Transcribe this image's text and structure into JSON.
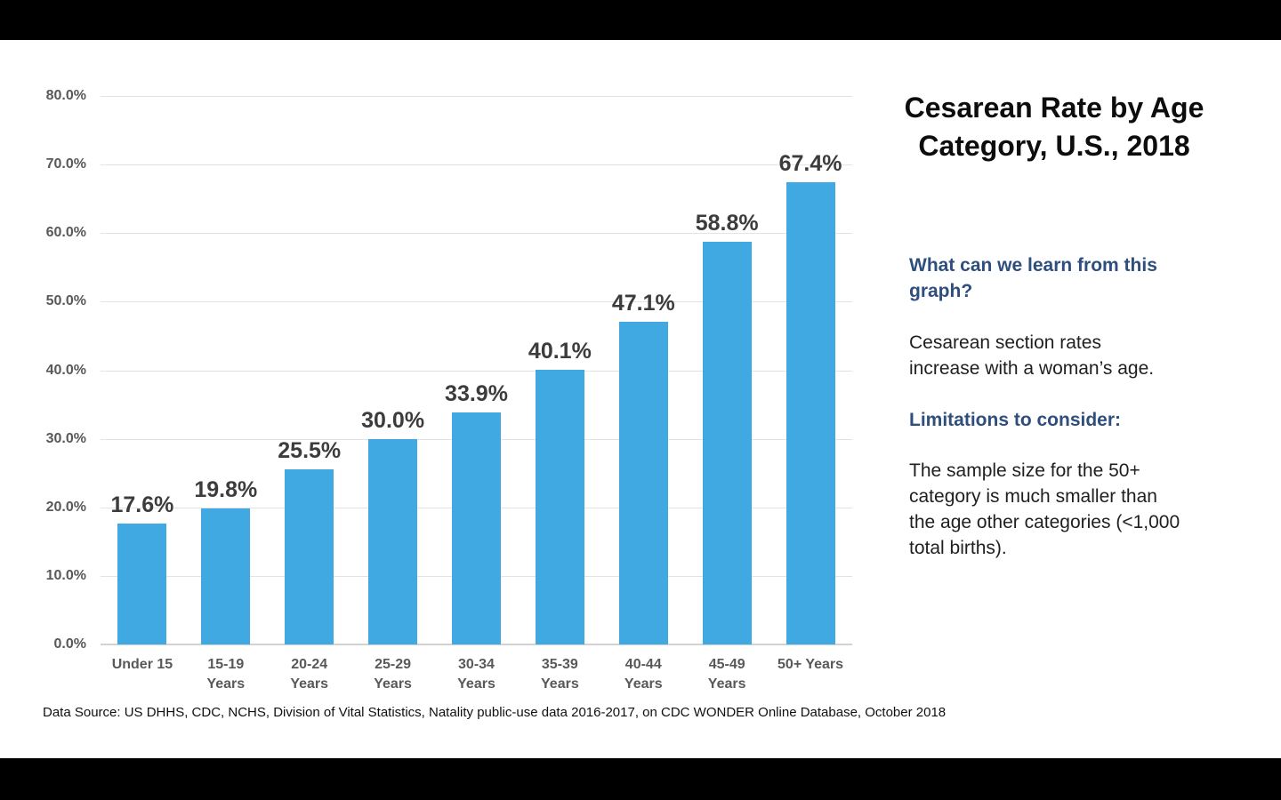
{
  "slide": {
    "background": "#ffffff",
    "letterbox_color": "#000000"
  },
  "title": {
    "text": "Cesarean Rate by Age Category, U.S., 2018",
    "lines": [
      "Cesarean Rate by Age",
      "Category, U.S., 2018"
    ]
  },
  "insights": {
    "learn_heading": "What can we learn from this graph?",
    "learn_body": "Cesarean section rates increase with a woman’s age.",
    "limits_heading": "Limitations to consider:",
    "limits_body": "The sample size for the 50+ category is much smaller than the age other categories (<1,000 total births)."
  },
  "source": "Data Source: US DHHS, CDC, NCHS, Division of Vital Statistics, Natality public-use data 2016-2017, on CDC WONDER Online Database, October 2018",
  "colors": {
    "bar": "#41a9e1",
    "heading_blue": "#2e4e7d",
    "gridline": "#e3e3e3",
    "axis_text": "#58595b",
    "data_label": "#3c3c3c"
  },
  "chart_data": {
    "type": "bar",
    "title": "Cesarean Rate by Age Category, U.S., 2018",
    "xlabel": "",
    "ylabel": "",
    "categories": [
      "Under 15",
      "15-19 Years",
      "20-24 Years",
      "25-29 Years",
      "30-34 Years",
      "35-39 Years",
      "40-44 Years",
      "45-49 Years",
      "50+ Years"
    ],
    "category_label_lines": [
      [
        "Under 15"
      ],
      [
        "15-19",
        "Years"
      ],
      [
        "20-24",
        "Years"
      ],
      [
        "25-29",
        "Years"
      ],
      [
        "30-34",
        "Years"
      ],
      [
        "35-39",
        "Years"
      ],
      [
        "40-44",
        "Years"
      ],
      [
        "45-49",
        "Years"
      ],
      [
        "50+ Years"
      ]
    ],
    "values": [
      17.6,
      19.8,
      25.5,
      30.0,
      33.9,
      40.1,
      47.1,
      58.8,
      67.4
    ],
    "data_labels": [
      "17.6%",
      "19.8%",
      "25.5%",
      "30.0%",
      "33.9%",
      "40.1%",
      "47.1%",
      "58.8%",
      "67.4%"
    ],
    "ylim": [
      0,
      80
    ],
    "ytick_step": 10,
    "ytick_labels": [
      "0.0%",
      "10.0%",
      "20.0%",
      "30.0%",
      "40.0%",
      "50.0%",
      "60.0%",
      "70.0%",
      "80.0%"
    ],
    "grid": true,
    "legend": false,
    "bar_color": "#41a9e1"
  }
}
